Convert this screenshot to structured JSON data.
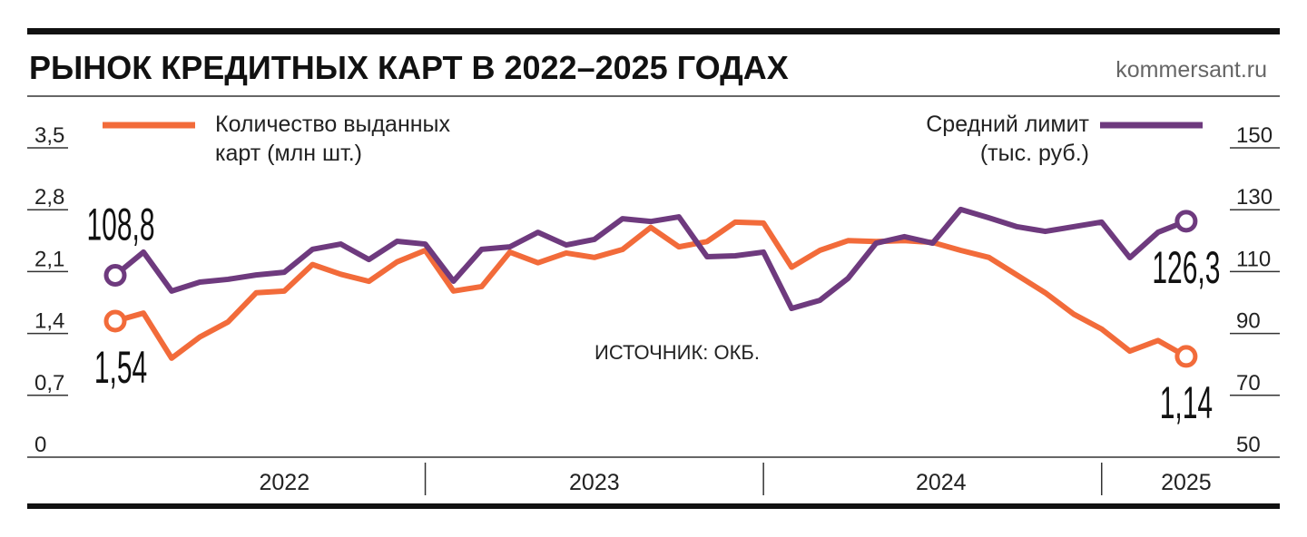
{
  "chart_data": {
    "type": "line",
    "title": "РЫНОК КРЕДИТНЫХ КАРТ В 2022–2025 ГОДАХ",
    "source_site": "kommersant.ru",
    "annotation": "ИСТОЧНИК: ОКБ.",
    "year_labels": [
      "2022",
      "2023",
      "2024",
      "2025"
    ],
    "categories": [
      null,
      null,
      null,
      null,
      null,
      null,
      null,
      null,
      null,
      null,
      null,
      null,
      null,
      null,
      null,
      null,
      null,
      null,
      null,
      null,
      null,
      null,
      null,
      null,
      null,
      null,
      null,
      null,
      null,
      null,
      null,
      null,
      null,
      null,
      null,
      null,
      null,
      null,
      null
    ],
    "ylim": [
      0,
      3.5
    ],
    "yticks": [
      0,
      {
        "value": 0.7,
        "label": "0,7"
      },
      {
        "value": 1.4,
        "label": "1,4"
      },
      {
        "value": 2.1,
        "label": "2,1"
      },
      {
        "value": 2.8,
        "label": "2,8"
      },
      {
        "value": 3.5,
        "label": "3,5"
      }
    ],
    "y2lim": [
      50,
      150
    ],
    "y2ticks": [
      50,
      70,
      90,
      110,
      130,
      150
    ],
    "series": [
      {
        "name": "Количество выданных карт (млн шт.)",
        "color": "#f26b3a",
        "values": [
          1.54,
          1.63,
          1.12,
          1.36,
          1.53,
          1.86,
          1.88,
          2.18,
          2.07,
          1.99,
          2.21,
          2.34,
          1.88,
          1.93,
          2.32,
          2.2,
          2.31,
          2.26,
          2.35,
          2.6,
          2.38,
          2.44,
          2.66,
          2.65,
          2.15,
          2.34,
          2.45,
          2.44,
          2.45,
          2.43,
          2.34,
          2.26,
          2.06,
          1.86,
          1.62,
          1.45,
          1.2,
          1.32,
          1.14
        ],
        "value_labels": [
          "1,54",
          null,
          null,
          null,
          null,
          null,
          null,
          null,
          null,
          null,
          null,
          null,
          null,
          null,
          null,
          null,
          null,
          null,
          null,
          null,
          null,
          null,
          null,
          null,
          null,
          null,
          null,
          null,
          null,
          null,
          null,
          null,
          null,
          null,
          null,
          null,
          null,
          null,
          "1,14"
        ]
      },
      {
        "name": "Средний лимит (тыс. руб.)",
        "color": "#6e3a7e",
        "axis": "y2",
        "values": [
          108.8,
          116.3,
          103.7,
          106.6,
          107.5,
          108.9,
          109.8,
          117.2,
          118.9,
          113.9,
          119.8,
          118.9,
          106.9,
          117.2,
          118,
          122.7,
          118.6,
          120.4,
          127.1,
          126.2,
          127.7,
          114.8,
          115.1,
          116.3,
          98.1,
          100.7,
          107.8,
          119.2,
          121.3,
          119.2,
          130.1,
          127.4,
          124.5,
          123,
          124.5,
          126,
          114.5,
          122.7,
          126.3
        ],
        "value_labels": [
          "108,8",
          null,
          null,
          null,
          null,
          null,
          null,
          null,
          null,
          null,
          null,
          null,
          null,
          null,
          null,
          null,
          null,
          null,
          null,
          null,
          null,
          null,
          null,
          null,
          null,
          null,
          null,
          null,
          null,
          null,
          null,
          null,
          null,
          null,
          null,
          null,
          null,
          null,
          "126,3"
        ]
      }
    ]
  }
}
